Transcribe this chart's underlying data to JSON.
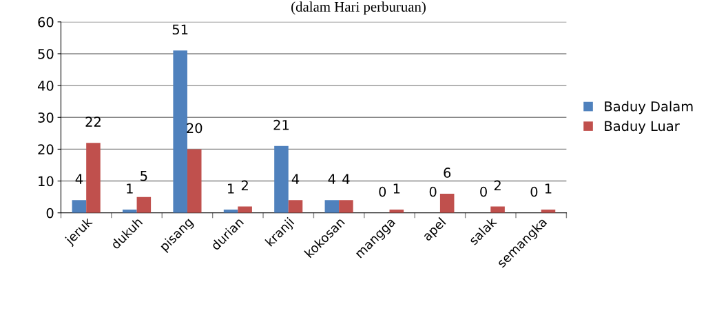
{
  "chart_data": {
    "type": "bar",
    "title": "(dalam Hari perburuan)",
    "categories": [
      "jeruk",
      "dukuh",
      "pisang",
      "durian",
      "kranji",
      "kokosan",
      "mangga",
      "apel",
      "salak",
      "semangka"
    ],
    "series": [
      {
        "name": "Baduy Dalam",
        "color": "#4f81bd",
        "values": [
          4,
          1,
          51,
          1,
          21,
          4,
          0,
          0,
          0,
          0
        ]
      },
      {
        "name": "Baduy Luar",
        "color": "#c0504d",
        "values": [
          22,
          5,
          20,
          2,
          4,
          4,
          1,
          6,
          2,
          1
        ]
      }
    ],
    "ylim": [
      0,
      60
    ],
    "yticks": [
      0,
      10,
      20,
      30,
      40,
      50,
      60
    ],
    "grid": "y",
    "legend": "right",
    "data_labels": true
  }
}
